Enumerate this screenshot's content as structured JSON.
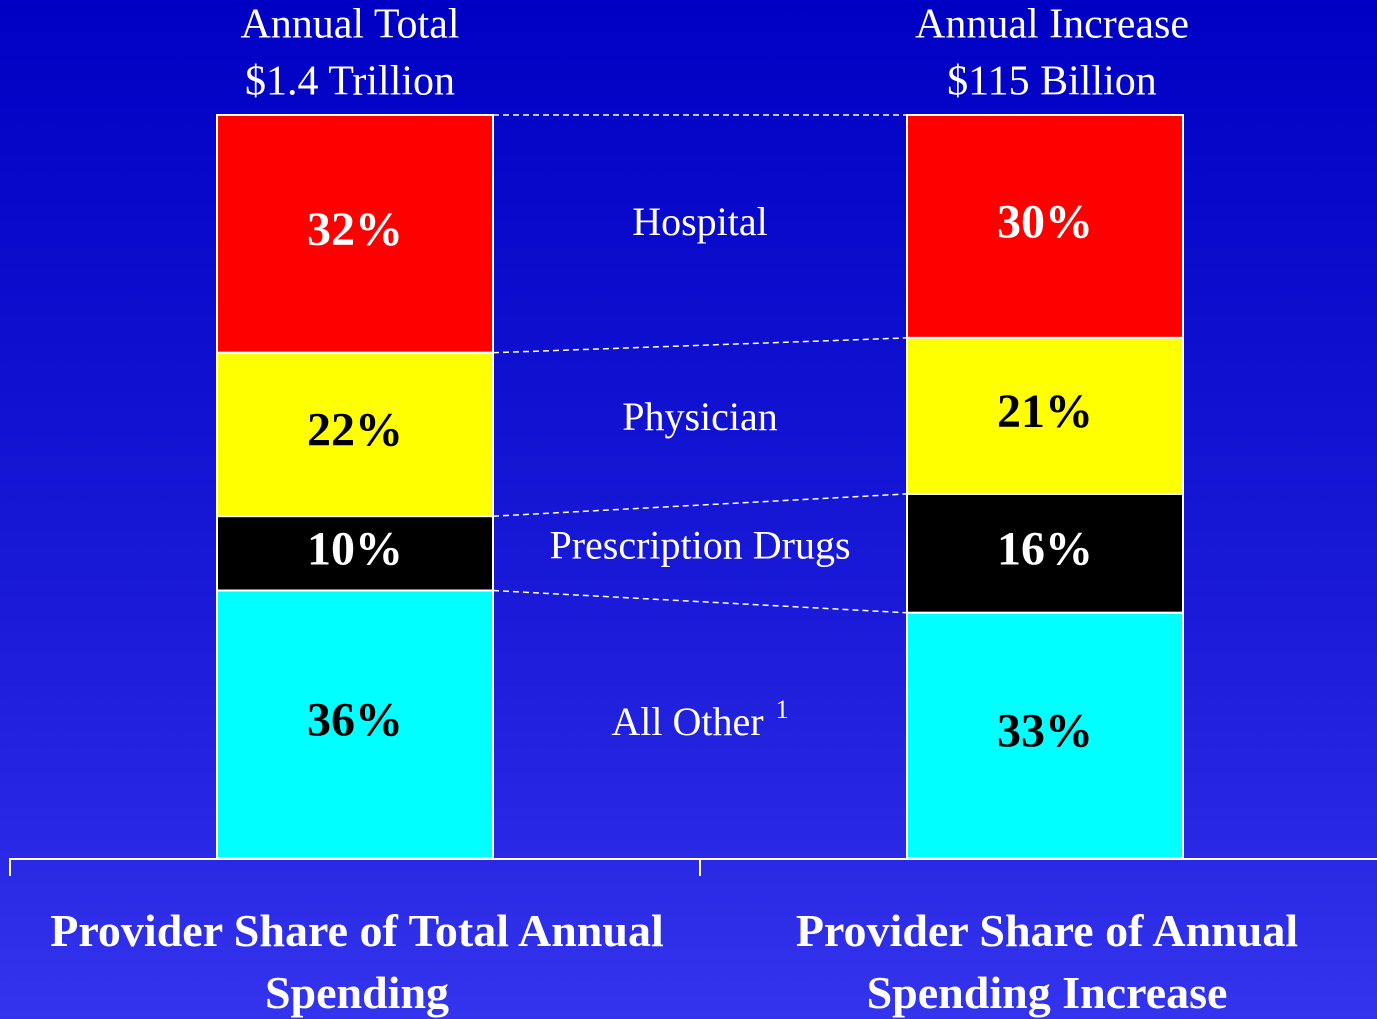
{
  "chart_data": {
    "type": "stacked_bar",
    "bar_titles": [
      [
        "Annual Total",
        "$1.4 Trillion"
      ],
      [
        "Annual Increase",
        "$115 Billion"
      ]
    ],
    "categories": [
      "Provider Share of Total Annual Spending",
      "Provider Share of Annual Spending Increase"
    ],
    "ylim": [
      0,
      100
    ],
    "series": [
      {
        "name": "Hospital",
        "color": "#ff0000",
        "label_color": "#ffffff",
        "values": [
          32,
          30
        ],
        "value_labels": [
          "32%",
          "30%"
        ]
      },
      {
        "name": "Physician",
        "color": "#ffff00",
        "label_color": "#000000",
        "values": [
          22,
          21
        ],
        "value_labels": [
          "22%",
          "21%"
        ]
      },
      {
        "name": "Prescription Drugs",
        "color": "#000000",
        "label_color": "#ffffff",
        "values": [
          10,
          16
        ],
        "value_labels": [
          "10%",
          "16%"
        ]
      },
      {
        "name": "All Other",
        "footnote": "1",
        "color": "#00ffff",
        "label_color": "#000000",
        "values": [
          36,
          33
        ],
        "value_labels": [
          "36%",
          "33%"
        ]
      }
    ]
  }
}
